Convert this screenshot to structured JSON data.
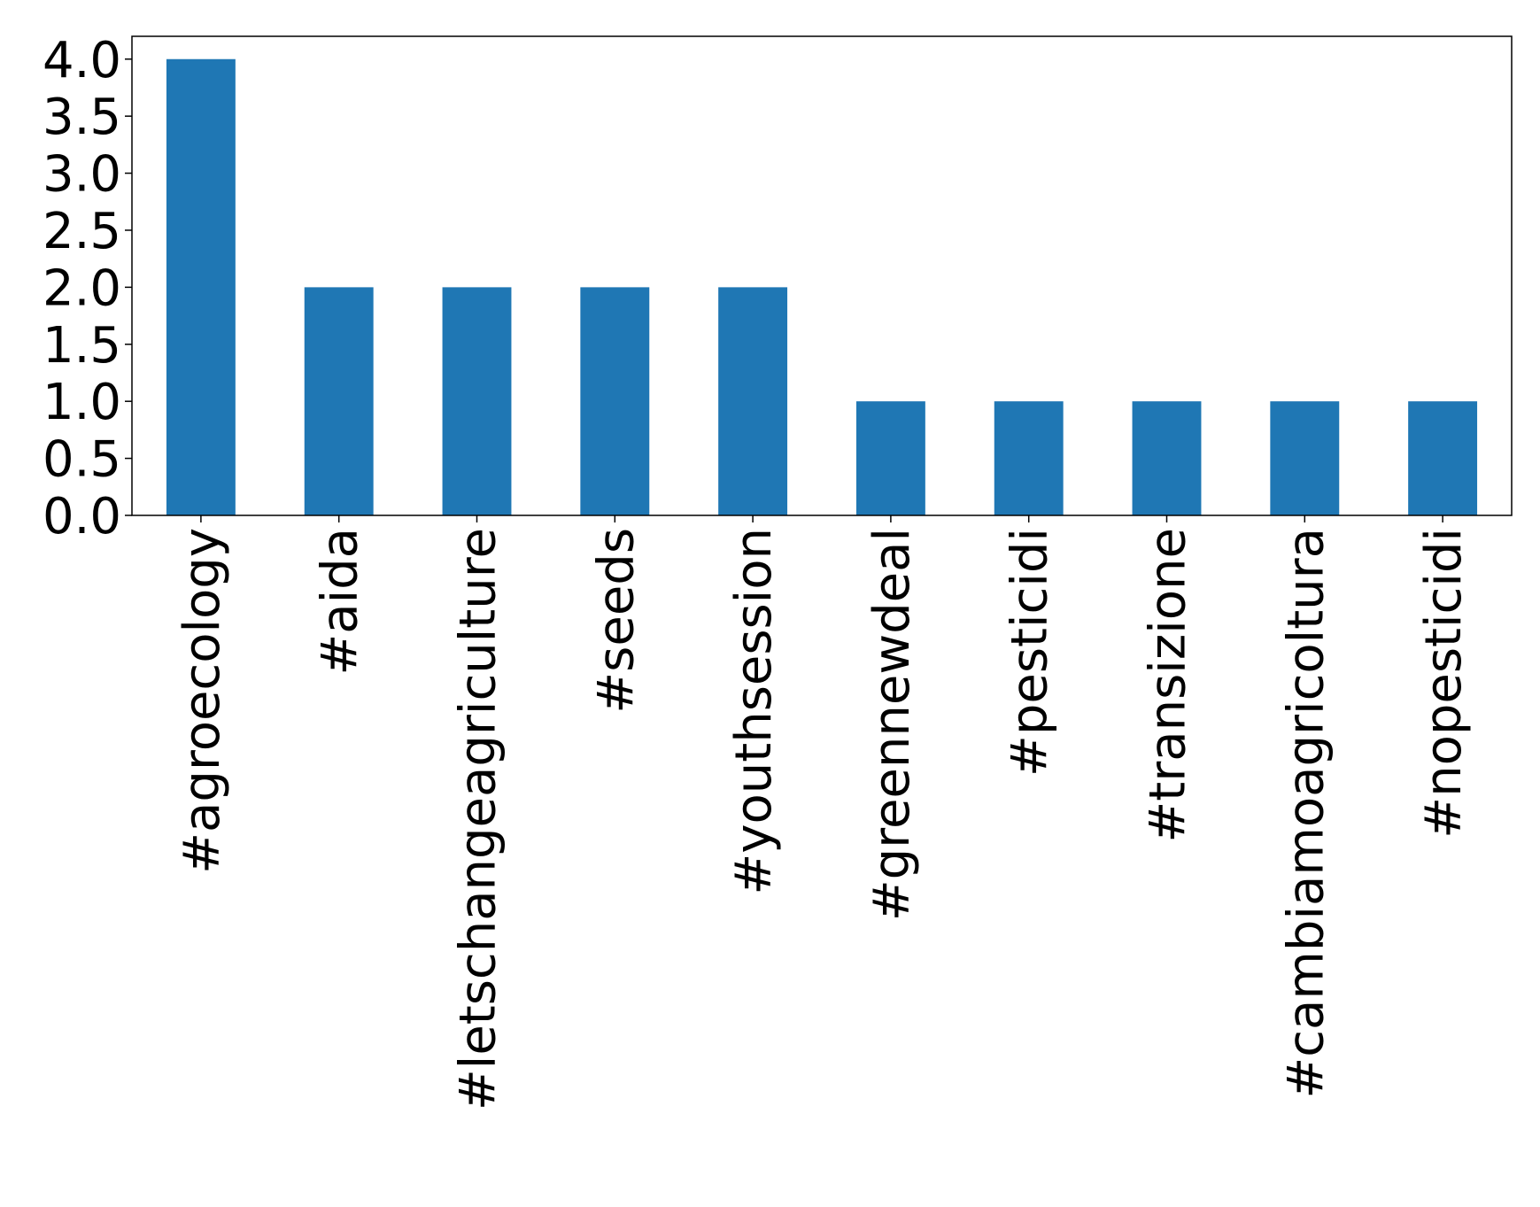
{
  "chart_data": {
    "type": "bar",
    "categories": [
      "#agroecology",
      "#aida",
      "#letschangeagriculture",
      "#seeds",
      "#youthsession",
      "#greennewdeal",
      "#pesticidi",
      "#transizione",
      "#cambiamoagricoltura",
      "#nopesticidi"
    ],
    "values": [
      4,
      2,
      2,
      2,
      2,
      1,
      1,
      1,
      1,
      1
    ],
    "color": "#1f77b4",
    "ylim": [
      0,
      4.2
    ],
    "yticks": [
      {
        "value": 0,
        "label": "0.0"
      },
      {
        "value": 0.5,
        "label": "0.5"
      },
      {
        "value": 1,
        "label": "1.0"
      },
      {
        "value": 1.5,
        "label": "1.5"
      },
      {
        "value": 2,
        "label": "2.0"
      },
      {
        "value": 2.5,
        "label": "2.5"
      },
      {
        "value": 3,
        "label": "3.0"
      },
      {
        "value": 3.5,
        "label": "3.5"
      },
      {
        "value": 4,
        "label": "4.0"
      }
    ],
    "grid": false
  }
}
